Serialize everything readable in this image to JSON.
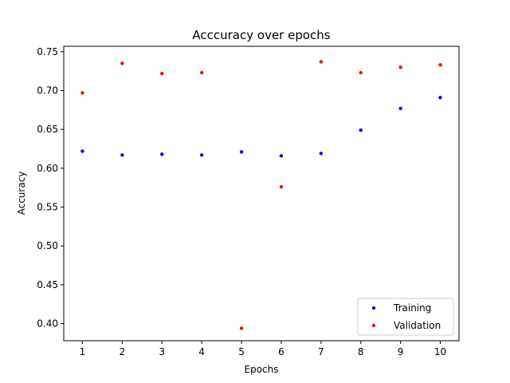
{
  "chart_data": {
    "type": "scatter",
    "title": "Acccuracy over epochs",
    "xlabel": "Epochs",
    "ylabel": "Accuracy",
    "xlim": [
      0.53,
      10.47
    ],
    "ylim": [
      0.378,
      0.757
    ],
    "x_ticks": [
      1,
      2,
      3,
      4,
      5,
      6,
      7,
      8,
      9,
      10
    ],
    "y_ticks": [
      0.4,
      0.45,
      0.5,
      0.55,
      0.6,
      0.65,
      0.7,
      0.75
    ],
    "y_tick_labels": [
      "0.40",
      "0.45",
      "0.50",
      "0.55",
      "0.60",
      "0.65",
      "0.70",
      "0.75"
    ],
    "grid": false,
    "legend_position": "lower-right",
    "series": [
      {
        "name": "Training",
        "color": "#0000ff",
        "x": [
          1,
          2,
          3,
          4,
          5,
          6,
          7,
          8,
          9,
          10
        ],
        "values": [
          0.622,
          0.617,
          0.618,
          0.617,
          0.621,
          0.616,
          0.619,
          0.649,
          0.677,
          0.691
        ]
      },
      {
        "name": "Validation",
        "color": "#ff0000",
        "x": [
          1,
          2,
          3,
          4,
          5,
          6,
          7,
          8,
          9,
          10
        ],
        "values": [
          0.697,
          0.735,
          0.722,
          0.723,
          0.394,
          0.576,
          0.737,
          0.723,
          0.73,
          0.733
        ]
      }
    ]
  }
}
